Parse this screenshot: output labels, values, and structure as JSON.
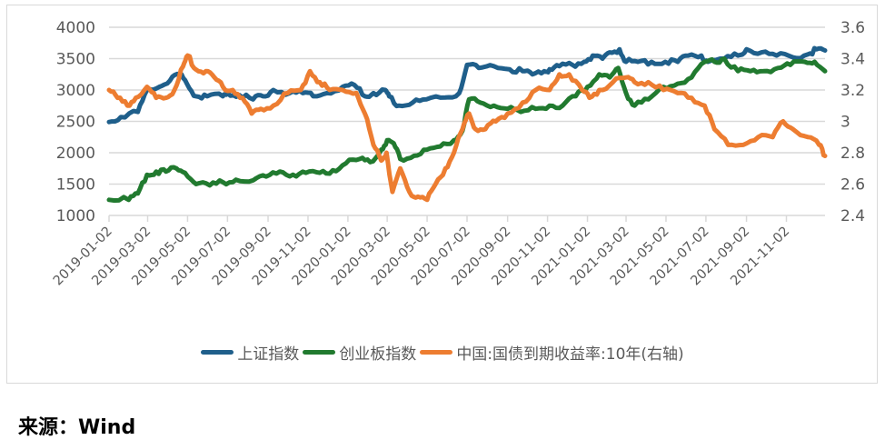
{
  "chart_data": {
    "type": "line",
    "title": "",
    "xlabel": "",
    "ylabel_left": "",
    "ylabel_right": "",
    "left_axis": {
      "ticks": [
        1000,
        1500,
        2000,
        2500,
        3000,
        3500,
        4000
      ],
      "ylim": [
        1000,
        4000
      ]
    },
    "right_axis": {
      "ticks": [
        2.4,
        2.6,
        2.8,
        3,
        3.2,
        3.4,
        3.6
      ],
      "tick_labels": [
        "2.4",
        "2.6",
        "2.8",
        "3",
        "3.2",
        "3.4",
        "3.6"
      ],
      "ylim": [
        2.4,
        3.6
      ]
    },
    "x_tick_labels": [
      "2019-01-02",
      "2019-03-02",
      "2019-05-02",
      "2019-07-02",
      "2019-09-02",
      "2019-11-02",
      "2020-01-02",
      "2020-03-02",
      "2020-05-02",
      "2020-07-02",
      "2020-09-02",
      "2020-11-02",
      "2021-01-02",
      "2021-03-02",
      "2021-05-02",
      "2021-07-02",
      "2021-09-02",
      "2021-11-02"
    ],
    "x_range": [
      "2019-01-02",
      "2021-12-31"
    ],
    "grid": true,
    "legend_position": "bottom",
    "series": [
      {
        "name": "上证指数",
        "axis": "left",
        "color": "#1F5F8B",
        "points": [
          [
            "2019-01-02",
            2490
          ],
          [
            "2019-01-20",
            2570
          ],
          [
            "2019-02-15",
            2650
          ],
          [
            "2019-03-01",
            3000
          ],
          [
            "2019-03-20",
            3050
          ],
          [
            "2019-04-05",
            3150
          ],
          [
            "2019-04-20",
            3250
          ],
          [
            "2019-05-01",
            3100
          ],
          [
            "2019-05-15",
            2900
          ],
          [
            "2019-06-01",
            2900
          ],
          [
            "2019-06-25",
            2900
          ],
          [
            "2019-07-02",
            2950
          ],
          [
            "2019-07-20",
            2920
          ],
          [
            "2019-08-10",
            2850
          ],
          [
            "2019-08-25",
            2900
          ],
          [
            "2019-09-10",
            3000
          ],
          [
            "2019-10-05",
            2950
          ],
          [
            "2019-10-25",
            2950
          ],
          [
            "2019-11-10",
            2900
          ],
          [
            "2019-12-01",
            2950
          ],
          [
            "2019-12-25",
            3050
          ],
          [
            "2020-01-12",
            3080
          ],
          [
            "2020-01-28",
            2900
          ],
          [
            "2020-02-10",
            2950
          ],
          [
            "2020-02-28",
            3000
          ],
          [
            "2020-03-05",
            2900
          ],
          [
            "2020-03-20",
            2750
          ],
          [
            "2020-04-10",
            2800
          ],
          [
            "2020-05-01",
            2850
          ],
          [
            "2020-05-30",
            2880
          ],
          [
            "2020-06-20",
            2950
          ],
          [
            "2020-07-02",
            3400
          ],
          [
            "2020-07-20",
            3350
          ],
          [
            "2020-08-12",
            3380
          ],
          [
            "2020-09-05",
            3330
          ],
          [
            "2020-09-25",
            3300
          ],
          [
            "2020-10-10",
            3250
          ],
          [
            "2020-10-28",
            3300
          ],
          [
            "2020-11-05",
            3330
          ],
          [
            "2020-11-20",
            3380
          ],
          [
            "2020-12-10",
            3400
          ],
          [
            "2020-12-28",
            3450
          ],
          [
            "2021-01-10",
            3550
          ],
          [
            "2021-01-25",
            3500
          ],
          [
            "2021-02-05",
            3600
          ],
          [
            "2021-02-20",
            3650
          ],
          [
            "2021-03-02",
            3450
          ],
          [
            "2021-03-20",
            3450
          ],
          [
            "2021-04-10",
            3450
          ],
          [
            "2021-05-01",
            3450
          ],
          [
            "2021-05-20",
            3450
          ],
          [
            "2021-06-05",
            3550
          ],
          [
            "2021-06-25",
            3550
          ],
          [
            "2021-07-05",
            3450
          ],
          [
            "2021-07-30",
            3500
          ],
          [
            "2021-08-20",
            3550
          ],
          [
            "2021-09-02",
            3650
          ],
          [
            "2021-09-25",
            3600
          ],
          [
            "2021-10-18",
            3550
          ],
          [
            "2021-11-12",
            3520
          ],
          [
            "2021-12-05",
            3570
          ],
          [
            "2021-12-18",
            3650
          ],
          [
            "2021-12-31",
            3630
          ]
        ]
      },
      {
        "name": "创业板指数",
        "axis": "left",
        "color": "#217A2F",
        "points": [
          [
            "2019-01-02",
            1250
          ],
          [
            "2019-02-01",
            1250
          ],
          [
            "2019-02-15",
            1350
          ],
          [
            "2019-03-01",
            1650
          ],
          [
            "2019-03-15",
            1700
          ],
          [
            "2019-03-30",
            1700
          ],
          [
            "2019-04-15",
            1750
          ],
          [
            "2019-04-28",
            1680
          ],
          [
            "2019-05-15",
            1500
          ],
          [
            "2019-06-05",
            1480
          ],
          [
            "2019-06-25",
            1530
          ],
          [
            "2019-07-15",
            1570
          ],
          [
            "2019-08-10",
            1560
          ],
          [
            "2019-08-30",
            1620
          ],
          [
            "2019-09-20",
            1700
          ],
          [
            "2019-10-10",
            1650
          ],
          [
            "2019-10-30",
            1680
          ],
          [
            "2019-11-20",
            1680
          ],
          [
            "2019-12-10",
            1720
          ],
          [
            "2019-12-30",
            1830
          ],
          [
            "2020-01-20",
            1900
          ],
          [
            "2020-02-05",
            1850
          ],
          [
            "2020-02-22",
            2050
          ],
          [
            "2020-03-02",
            2200
          ],
          [
            "2020-03-12",
            2150
          ],
          [
            "2020-03-22",
            1900
          ],
          [
            "2020-04-12",
            1950
          ],
          [
            "2020-05-02",
            2050
          ],
          [
            "2020-05-22",
            2100
          ],
          [
            "2020-06-12",
            2200
          ],
          [
            "2020-06-25",
            2350
          ],
          [
            "2020-07-05",
            2850
          ],
          [
            "2020-07-22",
            2800
          ],
          [
            "2020-08-12",
            2750
          ],
          [
            "2020-09-02",
            2700
          ],
          [
            "2020-09-22",
            2650
          ],
          [
            "2020-10-15",
            2700
          ],
          [
            "2020-11-05",
            2750
          ],
          [
            "2020-11-25",
            2750
          ],
          [
            "2020-12-15",
            2900
          ],
          [
            "2021-01-02",
            3050
          ],
          [
            "2021-01-20",
            3250
          ],
          [
            "2021-02-05",
            3200
          ],
          [
            "2021-02-18",
            3350
          ],
          [
            "2021-03-02",
            2950
          ],
          [
            "2021-03-15",
            2750
          ],
          [
            "2021-04-05",
            2850
          ],
          [
            "2021-04-28",
            3050
          ],
          [
            "2021-05-20",
            3100
          ],
          [
            "2021-06-10",
            3200
          ],
          [
            "2021-06-30",
            3450
          ],
          [
            "2021-07-15",
            3450
          ],
          [
            "2021-07-30",
            3500
          ],
          [
            "2021-08-20",
            3300
          ],
          [
            "2021-09-08",
            3300
          ],
          [
            "2021-09-28",
            3300
          ],
          [
            "2021-10-20",
            3350
          ],
          [
            "2021-11-08",
            3400
          ],
          [
            "2021-11-30",
            3450
          ],
          [
            "2021-12-15",
            3450
          ],
          [
            "2021-12-31",
            3300
          ]
        ]
      },
      {
        "name": "中国:国债到期收益率:10年(右轴)",
        "axis": "right",
        "color": "#ED7D31",
        "points": [
          [
            "2019-01-02",
            3.2
          ],
          [
            "2019-01-15",
            3.15
          ],
          [
            "2019-01-30",
            3.1
          ],
          [
            "2019-02-12",
            3.15
          ],
          [
            "2019-03-01",
            3.22
          ],
          [
            "2019-03-15",
            3.15
          ],
          [
            "2019-03-30",
            3.15
          ],
          [
            "2019-04-12",
            3.2
          ],
          [
            "2019-04-25",
            3.35
          ],
          [
            "2019-05-02",
            3.42
          ],
          [
            "2019-05-15",
            3.33
          ],
          [
            "2019-05-30",
            3.32
          ],
          [
            "2019-06-12",
            3.28
          ],
          [
            "2019-06-25",
            3.22
          ],
          [
            "2019-07-10",
            3.2
          ],
          [
            "2019-07-25",
            3.15
          ],
          [
            "2019-08-08",
            3.05
          ],
          [
            "2019-08-22",
            3.08
          ],
          [
            "2019-09-10",
            3.1
          ],
          [
            "2019-10-02",
            3.18
          ],
          [
            "2019-10-22",
            3.2
          ],
          [
            "2019-11-05",
            3.32
          ],
          [
            "2019-11-20",
            3.25
          ],
          [
            "2019-12-05",
            3.2
          ],
          [
            "2019-12-25",
            3.2
          ],
          [
            "2020-01-15",
            3.18
          ],
          [
            "2020-01-28",
            3.05
          ],
          [
            "2020-02-10",
            2.85
          ],
          [
            "2020-02-22",
            2.75
          ],
          [
            "2020-03-01",
            2.8
          ],
          [
            "2020-03-10",
            2.55
          ],
          [
            "2020-03-22",
            2.7
          ],
          [
            "2020-04-05",
            2.55
          ],
          [
            "2020-04-18",
            2.52
          ],
          [
            "2020-05-02",
            2.5
          ],
          [
            "2020-05-15",
            2.6
          ],
          [
            "2020-05-30",
            2.7
          ],
          [
            "2020-06-12",
            2.8
          ],
          [
            "2020-06-25",
            2.95
          ],
          [
            "2020-07-05",
            3.05
          ],
          [
            "2020-07-15",
            2.95
          ],
          [
            "2020-07-30",
            2.95
          ],
          [
            "2020-08-15",
            3.0
          ],
          [
            "2020-09-02",
            3.05
          ],
          [
            "2020-09-25",
            3.12
          ],
          [
            "2020-10-15",
            3.2
          ],
          [
            "2020-11-05",
            3.2
          ],
          [
            "2020-11-20",
            3.3
          ],
          [
            "2020-12-05",
            3.3
          ],
          [
            "2020-12-25",
            3.2
          ],
          [
            "2021-01-05",
            3.15
          ],
          [
            "2021-01-20",
            3.2
          ],
          [
            "2021-02-10",
            3.25
          ],
          [
            "2021-03-02",
            3.28
          ],
          [
            "2021-03-15",
            3.25
          ],
          [
            "2021-04-05",
            3.25
          ],
          [
            "2021-04-28",
            3.2
          ],
          [
            "2021-05-20",
            3.18
          ],
          [
            "2021-06-10",
            3.15
          ],
          [
            "2021-06-30",
            3.1
          ],
          [
            "2021-07-15",
            2.95
          ],
          [
            "2021-08-05",
            2.85
          ],
          [
            "2021-08-28",
            2.85
          ],
          [
            "2021-09-20",
            2.9
          ],
          [
            "2021-10-12",
            2.9
          ],
          [
            "2021-10-28",
            3.0
          ],
          [
            "2021-11-12",
            2.95
          ],
          [
            "2021-12-05",
            2.9
          ],
          [
            "2021-12-22",
            2.85
          ],
          [
            "2021-12-31",
            2.78
          ]
        ]
      }
    ]
  },
  "legend": {
    "items": [
      {
        "label": "上证指数",
        "color": "#1F5F8B"
      },
      {
        "label": "创业板指数",
        "color": "#217A2F"
      },
      {
        "label": "中国:国债到期收益率:10年(右轴)",
        "color": "#ED7D31"
      }
    ]
  },
  "source": {
    "text": "来源：Wind"
  },
  "colors": {
    "grid": "#d9d9d9",
    "axis_text": "#595959",
    "frame": "#d9d9d9"
  }
}
